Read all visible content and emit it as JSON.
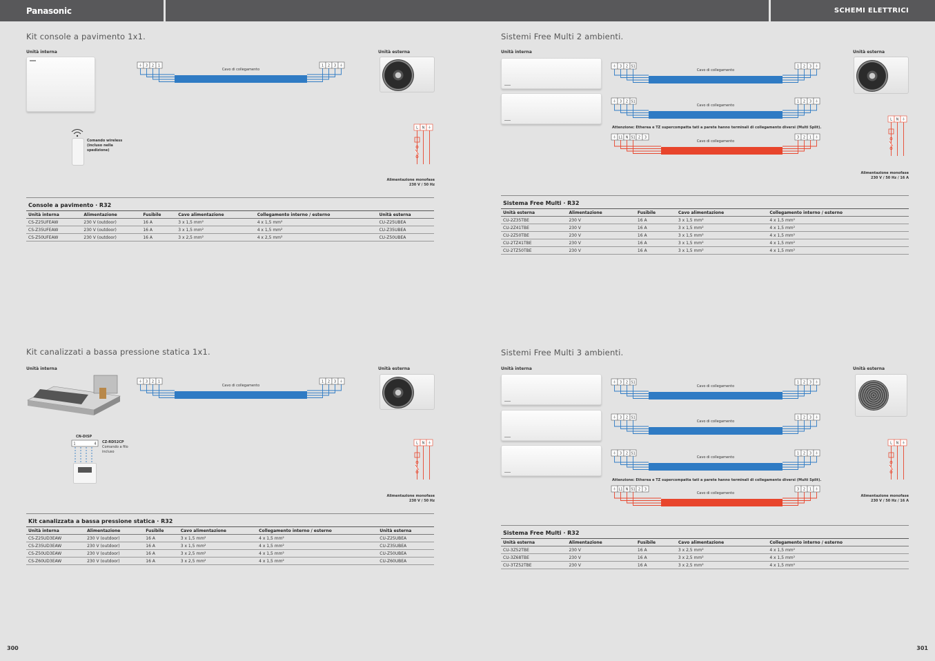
{
  "header": {
    "brand": "Panasonic",
    "section": "SCHEMI ELETTRICI"
  },
  "pages": {
    "left": "300",
    "right": "301"
  },
  "labels": {
    "indoor": "Unità interna",
    "outdoor": "Unità esterna",
    "cable": "Cavo di collegamento",
    "power": "Alimentazione monofase",
    "power_spec_single": "230 V / 50 Hz",
    "power_spec_multi": "230 V / 50 Hz / 16 A",
    "attention": "Attenzione: Etherea e TZ supercompatta tati a parete hanno terminali di collegamento diversi (Multi Split).",
    "power_terms": [
      "L",
      "N",
      "⏚"
    ]
  },
  "terminals": {
    "indoor_2core": [
      "⏚",
      "3",
      "2",
      "1"
    ],
    "outdoor_2core": [
      "1",
      "2",
      "3",
      "⏚"
    ],
    "indoor_multi": [
      "⏚",
      "3",
      "2",
      "S1"
    ],
    "outdoor_multi": [
      "1",
      "2",
      "3",
      "⏚"
    ],
    "indoor_red": [
      "⏚",
      "L1",
      "N",
      "S1",
      "2",
      "3"
    ],
    "outdoor_red": [
      "3",
      "2",
      "1",
      "⏚"
    ]
  },
  "colors": {
    "blue": "#2f7bc4",
    "red": "#e8452c",
    "header": "#58585a"
  },
  "s1": {
    "title": "Kit console a pavimento 1x1.",
    "remote": "Comando wireless (incluso nella spedizione)",
    "table": {
      "title": "Console a pavimento · R32",
      "headers": [
        "Unità interna",
        "Alimentazione",
        "Fusibile",
        "Cavo alimentazione",
        "Collegamento interno / esterno",
        "Unità esterna"
      ],
      "rows": [
        [
          "CS-Z25UFEAW",
          "230 V (outdoor)",
          "16 A",
          "3 x 1,5 mm²",
          "4 x 1,5 mm²",
          "CU-Z25UBEA"
        ],
        [
          "CS-Z35UFEAW",
          "230 V (outdoor)",
          "16 A",
          "3 x 1,5 mm²",
          "4 x 1,5 mm²",
          "CU-Z35UBEA"
        ],
        [
          "CS-Z50UFEAW",
          "230 V (outdoor)",
          "16 A",
          "3 x 2,5 mm²",
          "4 x 2,5 mm²",
          "CU-Z50UBEA"
        ]
      ]
    }
  },
  "s2": {
    "title": "Sistemi Free Multi 2 ambienti.",
    "table": {
      "title": "Sistema Free Multi · R32",
      "headers": [
        "Unità esterna",
        "Alimentazione",
        "Fusibile",
        "Cavo alimentazione",
        "Collegamento interno / esterno"
      ],
      "rows": [
        [
          "CU-2Z35TBE",
          "230 V",
          "16 A",
          "3 x 1,5 mm²",
          "4 x 1,5 mm²"
        ],
        [
          "CU-2Z41TBE",
          "230 V",
          "16 A",
          "3 x 1,5 mm²",
          "4 x 1,5 mm²"
        ],
        [
          "CU-2Z50TBE",
          "230 V",
          "16 A",
          "3 x 1,5 mm²",
          "4 x 1,5 mm²"
        ],
        [
          "CU-2TZ41TBE",
          "230 V",
          "16 A",
          "3 x 1,5 mm²",
          "4 x 1,5 mm²"
        ],
        [
          "CU-2TZ50TBE",
          "230 V",
          "16 A",
          "3 x 1,5 mm²",
          "4 x 1,5 mm²"
        ]
      ]
    }
  },
  "s3": {
    "title": "Kit canalizzati a bassa pressione statica 1x1.",
    "cn_disp": "CN-DISP",
    "cn_terms": [
      "1",
      "4"
    ],
    "remote_model": "CZ-RD52CP",
    "remote_desc": "Comando a filo incluso",
    "table": {
      "title": "Kit canalizzata a bassa pressione statica · R32",
      "headers": [
        "Unità interna",
        "Alimentazione",
        "Fusibile",
        "Cavo alimentazione",
        "Collegamento interno / esterno",
        "Unità esterna"
      ],
      "rows": [
        [
          "CS-Z25UD3EAW",
          "230 V (outdoor)",
          "16 A",
          "3 x 1,5 mm²",
          "4 x 1,5 mm²",
          "CU-Z25UBEA"
        ],
        [
          "CS-Z35UD3EAW",
          "230 V (outdoor)",
          "16 A",
          "3 x 1,5 mm²",
          "4 x 1,5 mm²",
          "CU-Z35UBEA"
        ],
        [
          "CS-Z50UD3EAW",
          "230 V (outdoor)",
          "16 A",
          "3 x 2,5 mm²",
          "4 x 1,5 mm²",
          "CU-Z50UBEA"
        ],
        [
          "CS-Z60UD3EAW",
          "230 V (outdoor)",
          "16 A",
          "3 x 2,5 mm²",
          "4 x 1,5 mm²",
          "CU-Z60UBEA"
        ]
      ]
    }
  },
  "s4": {
    "title": "Sistemi Free Multi 3 ambienti.",
    "table": {
      "title": "Sistema Free Multi · R32",
      "headers": [
        "Unità esterna",
        "Alimentazione",
        "Fusibile",
        "Cavo alimentazione",
        "Collegamento interno / esterno"
      ],
      "rows": [
        [
          "CU-3Z52TBE",
          "230 V",
          "16 A",
          "3 x 2,5 mm²",
          "4 x 1,5 mm²"
        ],
        [
          "CU-3Z68TBE",
          "230 V",
          "16 A",
          "3 x 2,5 mm²",
          "4 x 1,5 mm²"
        ],
        [
          "CU-3TZ52TBE",
          "230 V",
          "16 A",
          "3 x 2,5 mm²",
          "4 x 1,5 mm²"
        ]
      ]
    }
  }
}
